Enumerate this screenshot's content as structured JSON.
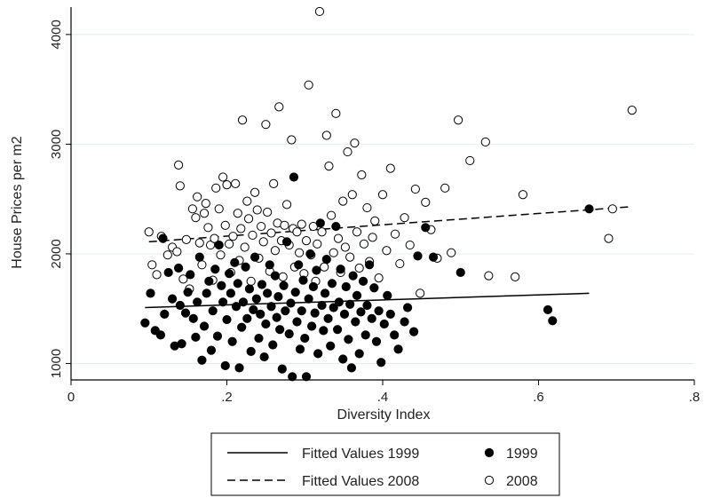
{
  "chart_data": {
    "type": "scatter",
    "title": "",
    "xlabel": "Diversity Index",
    "ylabel": "House Prices per m2",
    "xlim": [
      0,
      0.8
    ],
    "ylim": [
      850,
      4250
    ],
    "xticks": [
      0,
      0.2,
      0.4,
      0.6,
      0.8
    ],
    "xtick_labels": [
      "0",
      ".2",
      ".4",
      ".6",
      ".8"
    ],
    "yticks": [
      1000,
      2000,
      3000,
      4000
    ],
    "ytick_labels": [
      "1000",
      "2000",
      "3000",
      "4000"
    ],
    "grid": "horizontal",
    "legend_position": "bottom",
    "series": [
      {
        "name": "1999",
        "marker": "filled-circle",
        "color": "#000000",
        "points": [
          [
            0.095,
            1370
          ],
          [
            0.102,
            1640
          ],
          [
            0.108,
            1300
          ],
          [
            0.115,
            1260
          ],
          [
            0.118,
            2140
          ],
          [
            0.12,
            1450
          ],
          [
            0.125,
            1830
          ],
          [
            0.13,
            1590
          ],
          [
            0.133,
            1160
          ],
          [
            0.138,
            1870
          ],
          [
            0.14,
            1530
          ],
          [
            0.142,
            1180
          ],
          [
            0.147,
            1460
          ],
          [
            0.15,
            1650
          ],
          [
            0.153,
            1810
          ],
          [
            0.157,
            1410
          ],
          [
            0.16,
            1240
          ],
          [
            0.162,
            1560
          ],
          [
            0.165,
            1970
          ],
          [
            0.168,
            1030
          ],
          [
            0.171,
            1340
          ],
          [
            0.174,
            1640
          ],
          [
            0.177,
            1750
          ],
          [
            0.18,
            1120
          ],
          [
            0.182,
            1480
          ],
          [
            0.185,
            1860
          ],
          [
            0.188,
            1250
          ],
          [
            0.19,
            2080
          ],
          [
            0.193,
            1710
          ],
          [
            0.195,
            1560
          ],
          [
            0.198,
            980
          ],
          [
            0.2,
            1400
          ],
          [
            0.203,
            1820
          ],
          [
            0.205,
            1640
          ],
          [
            0.207,
            1200
          ],
          [
            0.21,
            1920
          ],
          [
            0.212,
            1520
          ],
          [
            0.214,
            1730
          ],
          [
            0.216,
            960
          ],
          [
            0.219,
            1330
          ],
          [
            0.221,
            1560
          ],
          [
            0.224,
            1880
          ],
          [
            0.226,
            1410
          ],
          [
            0.229,
            1680
          ],
          [
            0.231,
            1110
          ],
          [
            0.234,
            1490
          ],
          [
            0.236,
            1970
          ],
          [
            0.238,
            1590
          ],
          [
            0.241,
            1230
          ],
          [
            0.243,
            1450
          ],
          [
            0.245,
            1720
          ],
          [
            0.248,
            1060
          ],
          [
            0.25,
            1360
          ],
          [
            0.252,
            1640
          ],
          [
            0.255,
            1900
          ],
          [
            0.257,
            1520
          ],
          [
            0.259,
            1170
          ],
          [
            0.262,
            1800
          ],
          [
            0.264,
            1420
          ],
          [
            0.266,
            1610
          ],
          [
            0.268,
            1310
          ],
          [
            0.271,
            950
          ],
          [
            0.273,
            1710
          ],
          [
            0.275,
            1480
          ],
          [
            0.277,
            2110
          ],
          [
            0.28,
            1270
          ],
          [
            0.282,
            1550
          ],
          [
            0.284,
            880
          ],
          [
            0.286,
            2700
          ],
          [
            0.288,
            1650
          ],
          [
            0.29,
            1380
          ],
          [
            0.292,
            1900
          ],
          [
            0.294,
            1130
          ],
          [
            0.296,
            1480
          ],
          [
            0.298,
            1760
          ],
          [
            0.3,
            1230
          ],
          [
            0.302,
            880
          ],
          [
            0.305,
            1590
          ],
          [
            0.307,
            2000
          ],
          [
            0.309,
            1340
          ],
          [
            0.311,
            1700
          ],
          [
            0.313,
            1460
          ],
          [
            0.315,
            1850
          ],
          [
            0.317,
            1090
          ],
          [
            0.32,
            2280
          ],
          [
            0.322,
            1530
          ],
          [
            0.324,
            1300
          ],
          [
            0.326,
            1640
          ],
          [
            0.328,
            1950
          ],
          [
            0.33,
            1410
          ],
          [
            0.333,
            1160
          ],
          [
            0.335,
            1730
          ],
          [
            0.337,
            1510
          ],
          [
            0.34,
            2250
          ],
          [
            0.342,
            1310
          ],
          [
            0.344,
            1560
          ],
          [
            0.346,
            1860
          ],
          [
            0.349,
            1040
          ],
          [
            0.351,
            1450
          ],
          [
            0.353,
            1700
          ],
          [
            0.356,
            1220
          ],
          [
            0.358,
            1540
          ],
          [
            0.36,
            960
          ],
          [
            0.362,
            1800
          ],
          [
            0.365,
            1380
          ],
          [
            0.367,
            1620
          ],
          [
            0.37,
            1090
          ],
          [
            0.372,
            1470
          ],
          [
            0.375,
            1750
          ],
          [
            0.378,
            1260
          ],
          [
            0.38,
            1530
          ],
          [
            0.383,
            1900
          ],
          [
            0.386,
            1410
          ],
          [
            0.389,
            1690
          ],
          [
            0.392,
            1200
          ],
          [
            0.395,
            1480
          ],
          [
            0.398,
            1010
          ],
          [
            0.402,
            1360
          ],
          [
            0.406,
            1620
          ],
          [
            0.41,
            1450
          ],
          [
            0.415,
            1260
          ],
          [
            0.42,
            1130
          ],
          [
            0.428,
            1380
          ],
          [
            0.432,
            1510
          ],
          [
            0.44,
            1290
          ],
          [
            0.445,
            1980
          ],
          [
            0.455,
            2240
          ],
          [
            0.465,
            1970
          ],
          [
            0.5,
            1830
          ],
          [
            0.612,
            1490
          ],
          [
            0.618,
            1390
          ],
          [
            0.665,
            2410
          ]
        ]
      },
      {
        "name": "2008",
        "marker": "hollow-circle",
        "color": "#000000",
        "points": [
          [
            0.1,
            2200
          ],
          [
            0.104,
            1900
          ],
          [
            0.11,
            1810
          ],
          [
            0.116,
            2160
          ],
          [
            0.124,
            1990
          ],
          [
            0.13,
            2060
          ],
          [
            0.136,
            2020
          ],
          [
            0.138,
            2810
          ],
          [
            0.14,
            2620
          ],
          [
            0.144,
            1770
          ],
          [
            0.148,
            2130
          ],
          [
            0.152,
            1680
          ],
          [
            0.156,
            2410
          ],
          [
            0.16,
            2330
          ],
          [
            0.162,
            2520
          ],
          [
            0.165,
            2100
          ],
          [
            0.168,
            1900
          ],
          [
            0.171,
            2370
          ],
          [
            0.173,
            2460
          ],
          [
            0.176,
            2240
          ],
          [
            0.179,
            2080
          ],
          [
            0.182,
            1760
          ],
          [
            0.184,
            2140
          ],
          [
            0.186,
            2600
          ],
          [
            0.19,
            2410
          ],
          [
            0.192,
            1990
          ],
          [
            0.195,
            2700
          ],
          [
            0.198,
            2260
          ],
          [
            0.2,
            2630
          ],
          [
            0.203,
            2090
          ],
          [
            0.205,
            1830
          ],
          [
            0.208,
            2160
          ],
          [
            0.211,
            2640
          ],
          [
            0.214,
            2370
          ],
          [
            0.216,
            1940
          ],
          [
            0.218,
            2230
          ],
          [
            0.22,
            3220
          ],
          [
            0.223,
            2060
          ],
          [
            0.226,
            2480
          ],
          [
            0.228,
            2320
          ],
          [
            0.231,
            1750
          ],
          [
            0.233,
            2170
          ],
          [
            0.236,
            2560
          ],
          [
            0.239,
            2400
          ],
          [
            0.241,
            1960
          ],
          [
            0.244,
            2250
          ],
          [
            0.247,
            2110
          ],
          [
            0.25,
            3180
          ],
          [
            0.252,
            2380
          ],
          [
            0.255,
            1840
          ],
          [
            0.257,
            2190
          ],
          [
            0.26,
            2640
          ],
          [
            0.262,
            2030
          ],
          [
            0.265,
            2280
          ],
          [
            0.267,
            3340
          ],
          [
            0.27,
            2120
          ],
          [
            0.272,
            1790
          ],
          [
            0.274,
            2260
          ],
          [
            0.277,
            2450
          ],
          [
            0.28,
            2080
          ],
          [
            0.283,
            3040
          ],
          [
            0.285,
            2230
          ],
          [
            0.287,
            1880
          ],
          [
            0.29,
            2200
          ],
          [
            0.293,
            2010
          ],
          [
            0.296,
            2270
          ],
          [
            0.299,
            1820
          ],
          [
            0.302,
            2120
          ],
          [
            0.305,
            3540
          ],
          [
            0.308,
            1990
          ],
          [
            0.311,
            2250
          ],
          [
            0.314,
            1750
          ],
          [
            0.316,
            2090
          ],
          [
            0.319,
            4210
          ],
          [
            0.322,
            2200
          ],
          [
            0.325,
            1880
          ],
          [
            0.328,
            3080
          ],
          [
            0.331,
            2800
          ],
          [
            0.334,
            2350
          ],
          [
            0.337,
            2010
          ],
          [
            0.34,
            3280
          ],
          [
            0.343,
            2140
          ],
          [
            0.346,
            1830
          ],
          [
            0.349,
            2480
          ],
          [
            0.352,
            2060
          ],
          [
            0.355,
            2930
          ],
          [
            0.358,
            1970
          ],
          [
            0.361,
            2540
          ],
          [
            0.364,
            3010
          ],
          [
            0.367,
            2200
          ],
          [
            0.37,
            1870
          ],
          [
            0.373,
            2720
          ],
          [
            0.376,
            2090
          ],
          [
            0.38,
            2420
          ],
          [
            0.383,
            1930
          ],
          [
            0.387,
            2150
          ],
          [
            0.39,
            2300
          ],
          [
            0.395,
            1780
          ],
          [
            0.4,
            2540
          ],
          [
            0.405,
            2030
          ],
          [
            0.41,
            2780
          ],
          [
            0.416,
            2180
          ],
          [
            0.422,
            1910
          ],
          [
            0.428,
            2330
          ],
          [
            0.435,
            2080
          ],
          [
            0.442,
            2590
          ],
          [
            0.448,
            1640
          ],
          [
            0.455,
            2470
          ],
          [
            0.462,
            2220
          ],
          [
            0.47,
            1960
          ],
          [
            0.48,
            2600
          ],
          [
            0.488,
            2010
          ],
          [
            0.497,
            3220
          ],
          [
            0.512,
            2850
          ],
          [
            0.532,
            3020
          ],
          [
            0.536,
            1800
          ],
          [
            0.57,
            1790
          ],
          [
            0.58,
            2540
          ],
          [
            0.69,
            2140
          ],
          [
            0.695,
            2410
          ],
          [
            0.72,
            3310
          ]
        ]
      }
    ],
    "fitted_lines": [
      {
        "name": "Fitted Values 1999",
        "style": "solid",
        "x": [
          0.095,
          0.665
        ],
        "y": [
          1510,
          1640
        ]
      },
      {
        "name": "Fitted Values 2008",
        "style": "dashed",
        "x": [
          0.1,
          0.72
        ],
        "y": [
          2110,
          2430
        ]
      }
    ],
    "legend": [
      {
        "label": "Fitted Values 1999",
        "symbol": "solid-line"
      },
      {
        "label": "1999",
        "symbol": "filled-circle"
      },
      {
        "label": "Fitted Values 2008",
        "symbol": "dashed-line"
      },
      {
        "label": "2008",
        "symbol": "hollow-circle"
      }
    ]
  }
}
